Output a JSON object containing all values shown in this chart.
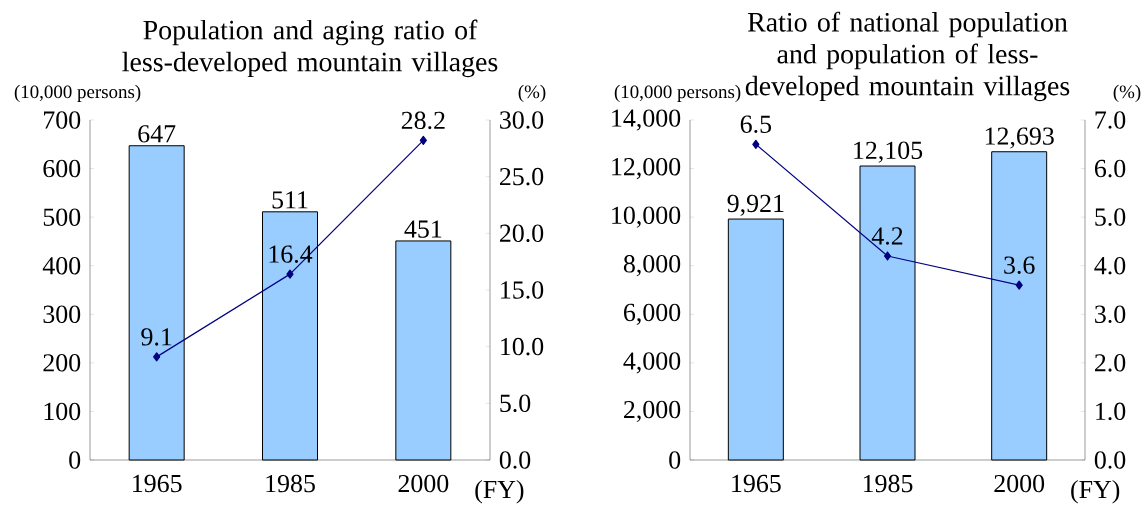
{
  "chart_data": [
    {
      "type": "bar",
      "title": "Population and aging ratio of less-developed mountain villages",
      "ylabel": "(10,000 persons)",
      "y2label": "(%)",
      "xlabel": "(FY)",
      "categories": [
        "1965",
        "1985",
        "2000"
      ],
      "series": [
        {
          "type": "bar",
          "color": "#99ccff",
          "values": [
            647,
            511,
            451
          ],
          "value_labels": [
            "647",
            "511",
            "451"
          ]
        },
        {
          "type": "line",
          "axis": "y2",
          "color": "#000080",
          "values": [
            9.1,
            16.4,
            28.2
          ],
          "value_labels": [
            "9.1",
            "16.4",
            "28.2"
          ]
        }
      ],
      "ylim": [
        0,
        700
      ],
      "yticks": [
        0,
        100,
        200,
        300,
        400,
        500,
        600,
        700
      ],
      "y2lim": [
        0,
        30
      ],
      "y2ticks": [
        {
          "value": 0,
          "label": "0.0"
        },
        {
          "value": 5,
          "label": "5.0"
        },
        {
          "value": 10,
          "label": "10.0"
        },
        {
          "value": 15,
          "label": "15.0"
        },
        {
          "value": 20,
          "label": "20.0"
        },
        {
          "value": 25,
          "label": "25.0"
        },
        {
          "value": 30,
          "label": "30.0"
        }
      ],
      "marker": "diamond",
      "line_style": "solid"
    },
    {
      "type": "bar",
      "title": "Ratio of national population and population of less-developed mountain villages",
      "ylabel": "(10,000 persons)",
      "y2label": "(%)",
      "xlabel": "(FY)",
      "categories": [
        "1965",
        "1985",
        "2000"
      ],
      "series": [
        {
          "type": "bar",
          "color": "#99ccff",
          "values": [
            9921,
            12105,
            12693
          ],
          "value_labels": [
            "9,921",
            "12,105",
            "12,693"
          ]
        },
        {
          "type": "line",
          "axis": "y2",
          "color": "#000080",
          "values": [
            6.5,
            4.2,
            3.6
          ],
          "value_labels": [
            "6.5",
            "4.2",
            "3.6"
          ]
        }
      ],
      "ylim": [
        0,
        14000
      ],
      "yticks": [
        0,
        {
          "value": 2000,
          "label": "2,000"
        },
        {
          "value": 4000,
          "label": "4,000"
        },
        {
          "value": 6000,
          "label": "6,000"
        },
        {
          "value": 8000,
          "label": "8,000"
        },
        {
          "value": 10000,
          "label": "10,000"
        },
        {
          "value": 12000,
          "label": "12,000"
        },
        {
          "value": 14000,
          "label": "14,000"
        }
      ],
      "y2lim": [
        0,
        7
      ],
      "y2ticks": [
        {
          "value": 0,
          "label": "0.0"
        },
        {
          "value": 1,
          "label": "1.0"
        },
        {
          "value": 2,
          "label": "2.0"
        },
        {
          "value": 3,
          "label": "3.0"
        },
        {
          "value": 4,
          "label": "4.0"
        },
        {
          "value": 5,
          "label": "5.0"
        },
        {
          "value": 6,
          "label": "6.0"
        },
        {
          "value": 7,
          "label": "7.0"
        }
      ],
      "marker": "diamond",
      "line_style": "solid"
    }
  ]
}
